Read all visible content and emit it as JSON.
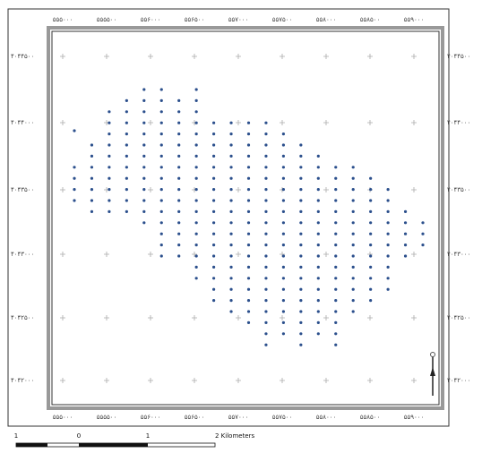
{
  "map": {
    "top_labels": [
      "۵۵۵۰۰۰",
      "۵۵۵۵۰۰",
      "۵۵۶۰۰۰",
      "۵۵۶۵۰۰",
      "۵۵۷۰۰۰",
      "۵۵۷۵۰۰",
      "۵۵۸۰۰۰",
      "۵۵۸۵۰۰",
      "۵۵۹۰۰۰"
    ],
    "bottom_labels": [
      "۵۵۵۰۰۰",
      "۵۵۵۵۰۰",
      "۵۵۶۰۰۰",
      "۵۵۶۵۰۰",
      "۵۵۷۰۰۰",
      "۵۵۷۵۰۰",
      "۵۵۸۰۰۰",
      "۵۵۸۵۰۰",
      "۵۵۹۰۰۰"
    ],
    "left_labels": [
      "۴۰۴۴۵۰۰",
      "۴۰۴۴۰۰۰",
      "۴۰۴۳۵۰۰",
      "۴۰۴۳۰۰۰",
      "۴۰۴۲۵۰۰",
      "۴۰۴۲۰۰۰"
    ],
    "right_labels": [
      "۴۰۴۴۵۰۰",
      "۴۰۴۴۰۰۰",
      "۴۰۴۳۵۰۰",
      "۴۰۴۳۰۰۰",
      "۴۰۴۲۵۰۰",
      "۴۰۴۲۰۰۰"
    ],
    "scale_labels": [
      "1",
      "0",
      "1",
      "2 Kilometers"
    ]
  }
}
